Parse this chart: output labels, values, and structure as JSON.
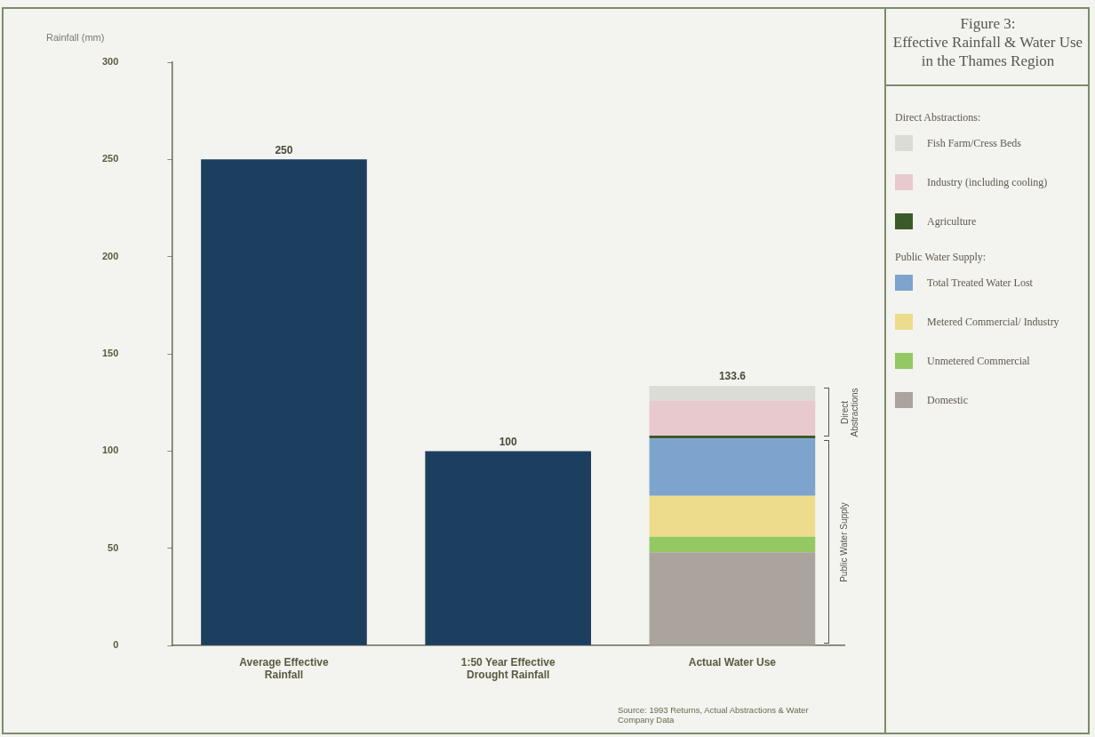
{
  "chart_data": {
    "type": "bar",
    "stacked": true,
    "title": "Figure 3:\nEffective Rainfall & Water Use in the Thames Region",
    "ylabel": "Rainfall (mm)",
    "categories": [
      "Average Effective Rainfall",
      "1:50 Year Effective Drought Rainfall",
      "Actual Water Use"
    ],
    "series": [
      {
        "color": "#1d3f5f",
        "values": [
          250,
          100,
          null
        ],
        "value_labels": [
          "250",
          "100",
          null
        ]
      },
      {
        "name": "Domestic",
        "color": "#aaa49c",
        "values": [
          null,
          null,
          48
        ]
      },
      {
        "name": "Unmetered Commercial",
        "color": "#93c862",
        "values": [
          null,
          null,
          8
        ]
      },
      {
        "name": "Metered Commercial/ Industry",
        "color": "#ecdc8c",
        "values": [
          null,
          null,
          21
        ]
      },
      {
        "name": "Total Treated Water Lost",
        "color": "#7ca4cc",
        "values": [
          null,
          null,
          29.5
        ]
      },
      {
        "name": "Agriculture",
        "color": "#3b5a2a",
        "values": [
          null,
          null,
          1.5
        ]
      },
      {
        "name": "Industry (including cooling)",
        "color": "#e8c9cd",
        "values": [
          null,
          null,
          18
        ]
      },
      {
        "name": "Fish Farm/Cress Beds",
        "color": "#dcdcd6",
        "values": [
          null,
          null,
          7.6
        ]
      }
    ],
    "totals": [
      null,
      null,
      "133.6"
    ],
    "ylim": [
      0,
      300
    ],
    "yticks": [
      0,
      50,
      100,
      150,
      200,
      250,
      300
    ],
    "grid": false,
    "legend": "right",
    "annotations": [
      "Direct Abstractions:",
      "Public Water Supply:",
      "Direct Abstractions",
      "Public Water Supply",
      "Source: 1993 Returns, Actual Abstractions & Water Company Data"
    ]
  }
}
